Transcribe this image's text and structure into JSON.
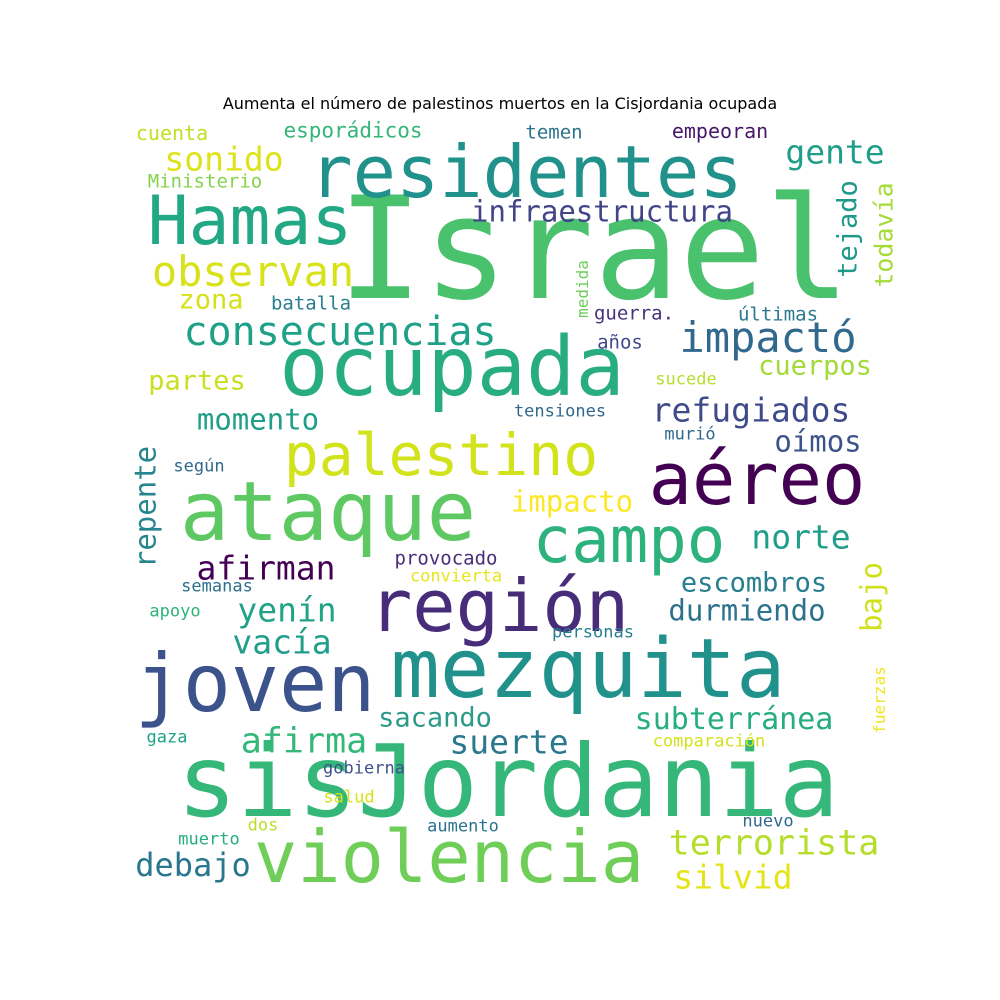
{
  "title": "Aumenta el número de palestinos muertos en la Cisjordania ocupada",
  "palette": [
    "#440154",
    "#482878",
    "#3e4a89",
    "#31688e",
    "#26828e",
    "#1f9e89",
    "#35b779",
    "#6ece58",
    "#b5de2b",
    "#fde725"
  ],
  "words": [
    {
      "text": "Israel",
      "color": "#4ac16d"
    },
    {
      "text": "residentes",
      "color": "#21918c"
    },
    {
      "text": "Hamas",
      "color": "#22a884"
    },
    {
      "text": "ocupada",
      "color": "#27ad81"
    },
    {
      "text": "palestino",
      "color": "#d2e21b"
    },
    {
      "text": "ataque",
      "color": "#5ec962"
    },
    {
      "text": "aéreo",
      "color": "#440154"
    },
    {
      "text": "campo",
      "color": "#2db27d"
    },
    {
      "text": "región",
      "color": "#472c7a"
    },
    {
      "text": "mezquita",
      "color": "#21918c"
    },
    {
      "text": "joven",
      "color": "#3b528b"
    },
    {
      "text": "sisJordania",
      "color": "#35b779"
    },
    {
      "text": "violencia",
      "color": "#6ece58"
    },
    {
      "text": "infraestructura",
      "color": "#414487"
    },
    {
      "text": "consecuencias",
      "color": "#1fa187"
    },
    {
      "text": "observan",
      "color": "#d8e219"
    },
    {
      "text": "impactó",
      "color": "#31688e"
    },
    {
      "text": "refugiados",
      "color": "#3e4a89"
    },
    {
      "text": "sonido",
      "color": "#dde318"
    },
    {
      "text": "gente",
      "color": "#1f9e89"
    },
    {
      "text": "momento",
      "color": "#1f9e89"
    },
    {
      "text": "oímos",
      "color": "#3b528b"
    },
    {
      "text": "norte",
      "color": "#1f9e89"
    },
    {
      "text": "afirman",
      "color": "#440154"
    },
    {
      "text": "yenín",
      "color": "#20a386"
    },
    {
      "text": "durmiendo",
      "color": "#2c728e"
    },
    {
      "text": "escombros",
      "color": "#287d8e"
    },
    {
      "text": "vacía",
      "color": "#1f9e89"
    },
    {
      "text": "subterránea",
      "color": "#26ad81"
    },
    {
      "text": "afirma",
      "color": "#35b779"
    },
    {
      "text": "suerte",
      "color": "#2a788e"
    },
    {
      "text": "sacando",
      "color": "#2c9a89"
    },
    {
      "text": "terrorista",
      "color": "#b5de2b"
    },
    {
      "text": "debajo",
      "color": "#2a768e"
    },
    {
      "text": "silvid",
      "color": "#e5e419"
    },
    {
      "text": "impacto",
      "color": "#fde725"
    },
    {
      "text": "cuerpos",
      "color": "#a2da37"
    },
    {
      "text": "partes",
      "color": "#c8e020"
    },
    {
      "text": "zona",
      "color": "#d5e21a"
    },
    {
      "text": "tejado",
      "color": "#1f998a"
    },
    {
      "text": "todavía",
      "color": "#a5db36"
    },
    {
      "text": "repente",
      "color": "#25848e"
    },
    {
      "text": "bajo",
      "color": "#d0e11c"
    },
    {
      "text": "cuenta",
      "color": "#c2df23"
    },
    {
      "text": "esporádicos",
      "color": "#34b679"
    },
    {
      "text": "temen",
      "color": "#2c728e"
    },
    {
      "text": "empeoran",
      "color": "#481769"
    },
    {
      "text": "Ministerio",
      "color": "#84d44b"
    },
    {
      "text": "batalla",
      "color": "#287d8e"
    },
    {
      "text": "medida",
      "color": "#6ccd5a"
    },
    {
      "text": "guerra.",
      "color": "#46327e"
    },
    {
      "text": "últimas",
      "color": "#2a788e"
    },
    {
      "text": "años",
      "color": "#3e4a89"
    },
    {
      "text": "sucede",
      "color": "#b8de29"
    },
    {
      "text": "tensiones",
      "color": "#31688e"
    },
    {
      "text": "murió",
      "color": "#31688e"
    },
    {
      "text": "según",
      "color": "#31688e"
    },
    {
      "text": "provocado",
      "color": "#472d7b"
    },
    {
      "text": "convierta",
      "color": "#e7e419"
    },
    {
      "text": "semanas",
      "color": "#2d708e"
    },
    {
      "text": "apoyo",
      "color": "#2db27d"
    },
    {
      "text": "personas",
      "color": "#277f8e"
    },
    {
      "text": "fuerzas",
      "color": "#f1e51d"
    },
    {
      "text": "gaza",
      "color": "#1fa187"
    },
    {
      "text": "comparación",
      "color": "#d2e21b"
    },
    {
      "text": "gobierna",
      "color": "#3b528b"
    },
    {
      "text": "salud",
      "color": "#d8e219"
    },
    {
      "text": "muerto",
      "color": "#26ad81"
    },
    {
      "text": "dos",
      "color": "#b8de29"
    },
    {
      "text": "aumento",
      "color": "#2c728e"
    },
    {
      "text": "nuevo",
      "color": "#31688e"
    }
  ]
}
